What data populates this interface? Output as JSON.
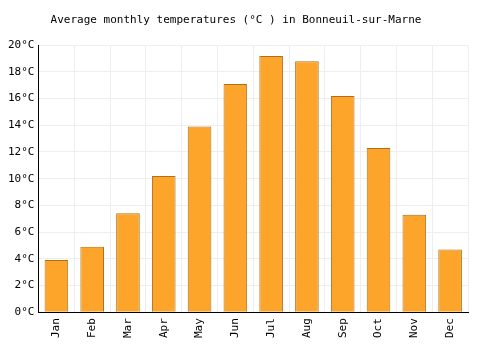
{
  "chart_data": {
    "type": "bar",
    "title": "Average monthly temperatures (°C ) in Bonneuil-sur-Marne",
    "categories": [
      "Jan",
      "Feb",
      "Mar",
      "Apr",
      "May",
      "Jun",
      "Jul",
      "Aug",
      "Sep",
      "Oct",
      "Nov",
      "Dec"
    ],
    "values": [
      3.9,
      4.9,
      7.4,
      10.2,
      13.9,
      17.1,
      19.2,
      18.8,
      16.2,
      12.3,
      7.3,
      4.7
    ],
    "color": "#fca52a",
    "ylim": [
      0,
      20
    ],
    "yticks": [
      {
        "value": 0,
        "label": "0°C"
      },
      {
        "value": 2,
        "label": "2°C"
      },
      {
        "value": 4,
        "label": "4°C"
      },
      {
        "value": 6,
        "label": "6°C"
      },
      {
        "value": 8,
        "label": "8°C"
      },
      {
        "value": 10,
        "label": "10°C"
      },
      {
        "value": 12,
        "label": "12°C"
      },
      {
        "value": 14,
        "label": "14°C"
      },
      {
        "value": 16,
        "label": "16°C"
      },
      {
        "value": 18,
        "label": "18°C"
      },
      {
        "value": 20,
        "label": "20°C"
      }
    ],
    "grid": true
  }
}
